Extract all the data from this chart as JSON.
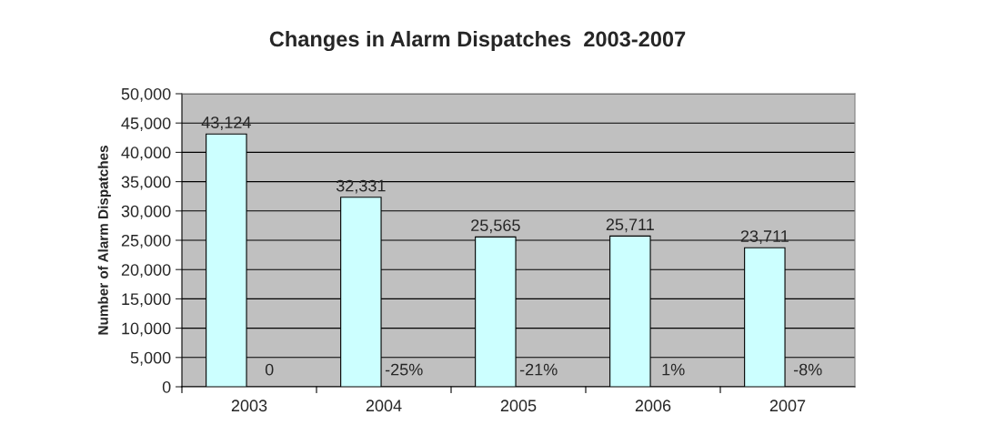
{
  "chart_data": {
    "type": "bar",
    "title": "Changes in Alarm Dispatches  2003-2007",
    "ylabel": "Number of Alarm Dispatches",
    "categories": [
      "2003",
      "2004",
      "2005",
      "2006",
      "2007"
    ],
    "values": [
      43124,
      32331,
      25565,
      25711,
      23711
    ],
    "color": "#ccffff",
    "value_labels": [
      "43,124",
      "32,331",
      "25,565",
      "25,711",
      "23,711"
    ],
    "ylim": [
      0,
      50000
    ],
    "yticks": [
      {
        "value": 0,
        "label": "0"
      },
      {
        "value": 5000,
        "label": "5,000"
      },
      {
        "value": 10000,
        "label": "10,000"
      },
      {
        "value": 15000,
        "label": "15,000"
      },
      {
        "value": 20000,
        "label": "20,000"
      },
      {
        "value": 25000,
        "label": "25,000"
      },
      {
        "value": 30000,
        "label": "30,000"
      },
      {
        "value": 35000,
        "label": "35,000"
      },
      {
        "value": 40000,
        "label": "40,000"
      },
      {
        "value": 45000,
        "label": "45,000"
      },
      {
        "value": 50000,
        "label": "50,000"
      }
    ],
    "grid": "y",
    "legend": false,
    "annotations": [
      {
        "text": "0",
        "x": "2003",
        "y": 2700
      },
      {
        "text": "-25%",
        "x": "2004",
        "y": 2700
      },
      {
        "text": "-21%",
        "x": "2005",
        "y": 2700
      },
      {
        "text": "1%",
        "x": "2006",
        "y": 2700
      },
      {
        "text": "-8%",
        "x": "2007",
        "y": 2700
      }
    ]
  }
}
